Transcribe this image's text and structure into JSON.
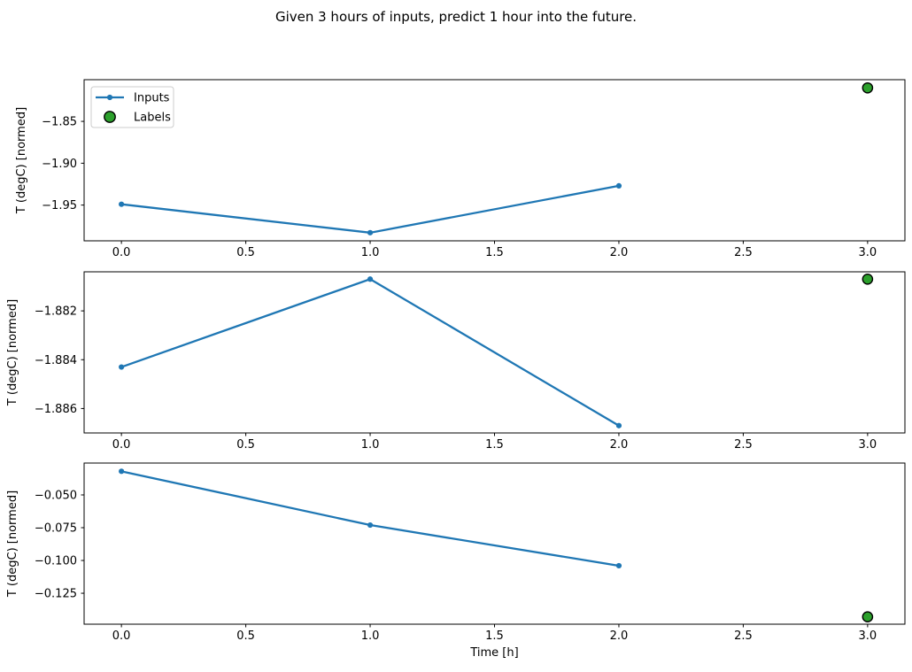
{
  "title": "Given 3 hours of inputs, predict 1 hour into the future.",
  "xlabel": "Time [h]",
  "colors": {
    "inputs_line": "#1f77b4",
    "labels_fill": "#2ca02c",
    "labels_edge": "#000000",
    "axis": "#000000",
    "legend_border": "#cccccc",
    "background": "#ffffff"
  },
  "legend": {
    "position": "upper-left-of-first-subplot",
    "entries": [
      {
        "label": "Inputs",
        "marker": "line-with-dot"
      },
      {
        "label": "Labels",
        "marker": "filled-circle"
      }
    ]
  },
  "chart_data": [
    {
      "type": "line",
      "title": "",
      "ylabel": "T (degC) [normed]",
      "x": [
        0,
        1,
        2
      ],
      "series": [
        {
          "name": "Inputs",
          "values": [
            -1.949,
            -1.983,
            -1.927
          ]
        }
      ],
      "labels_point": {
        "name": "Labels",
        "x": 3,
        "y": -1.81
      },
      "xlim": [
        -0.15,
        3.15
      ],
      "ylim": [
        -1.9927,
        -1.8002
      ],
      "xticks": [
        0,
        0.5,
        1,
        1.5,
        2,
        2.5,
        3
      ],
      "xtick_labels": [
        "0.0",
        "0.5",
        "1.0",
        "1.5",
        "2.0",
        "2.5",
        "3.0"
      ],
      "yticks": [
        -1.85,
        -1.9,
        -1.95
      ],
      "ytick_labels": [
        "−1.85",
        "−1.90",
        "−1.95"
      ],
      "grid": false,
      "show_legend": true
    },
    {
      "type": "line",
      "title": "",
      "ylabel": "T (degC) [normed]",
      "x": [
        0,
        1,
        2
      ],
      "series": [
        {
          "name": "Inputs",
          "values": [
            -1.8843,
            -1.8807,
            -1.8867
          ]
        }
      ],
      "labels_point": {
        "name": "Labels",
        "x": 3,
        "y": -1.8807
      },
      "xlim": [
        -0.15,
        3.15
      ],
      "ylim": [
        -1.887,
        -1.8804
      ],
      "xticks": [
        0,
        0.5,
        1,
        1.5,
        2,
        2.5,
        3
      ],
      "xtick_labels": [
        "0.0",
        "0.5",
        "1.0",
        "1.5",
        "2.0",
        "2.5",
        "3.0"
      ],
      "yticks": [
        -1.882,
        -1.884,
        -1.886
      ],
      "ytick_labels": [
        "−1.882",
        "−1.884",
        "−1.886"
      ],
      "grid": false,
      "show_legend": false
    },
    {
      "type": "line",
      "title": "",
      "ylabel": "T (degC) [normed]",
      "xlabel": "Time [h]",
      "x": [
        0,
        1,
        2
      ],
      "series": [
        {
          "name": "Inputs",
          "values": [
            -0.032,
            -0.073,
            -0.104
          ]
        }
      ],
      "labels_point": {
        "name": "Labels",
        "x": 3,
        "y": -0.143
      },
      "xlim": [
        -0.15,
        3.15
      ],
      "ylim": [
        -0.1486,
        -0.0257
      ],
      "xticks": [
        0,
        0.5,
        1,
        1.5,
        2,
        2.5,
        3
      ],
      "xtick_labels": [
        "0.0",
        "0.5",
        "1.0",
        "1.5",
        "2.0",
        "2.5",
        "3.0"
      ],
      "yticks": [
        -0.05,
        -0.075,
        -0.1,
        -0.125
      ],
      "ytick_labels": [
        "−0.050",
        "−0.075",
        "−0.100",
        "−0.125"
      ],
      "grid": false,
      "show_legend": false
    }
  ]
}
